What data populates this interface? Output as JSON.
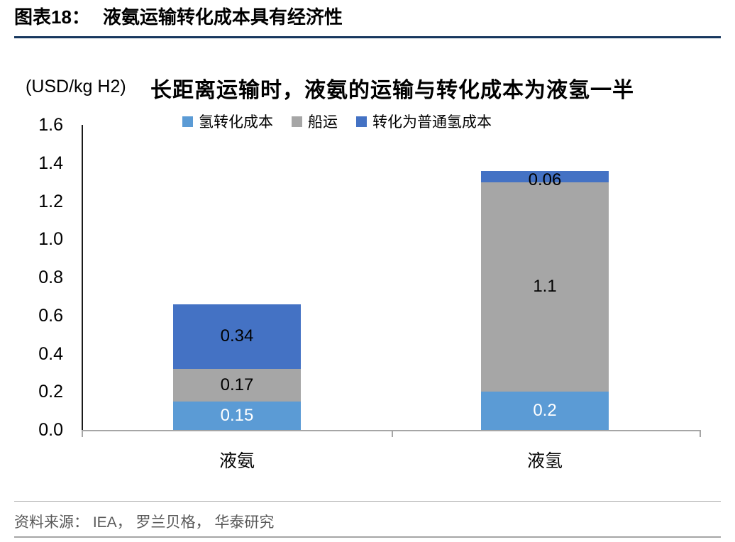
{
  "header": {
    "figure_label": "图表18：",
    "title": "液氨运输转化成本具有经济性"
  },
  "chart_data": {
    "type": "bar",
    "stacked": true,
    "title": "长距离运输时，液氨的运输与转化成本为液氢一半",
    "unit_label": "(USD/kg H2)",
    "categories": [
      "液氨",
      "液氢"
    ],
    "series": [
      {
        "name": "氢转化成本",
        "color": "#5B9BD5",
        "label_color": "#FFFFFF",
        "values": [
          0.15,
          0.2
        ]
      },
      {
        "name": "船运",
        "color": "#A6A6A6",
        "label_color": "#000000",
        "values": [
          0.17,
          1.1
        ]
      },
      {
        "name": "转化为普通氢成本",
        "color": "#4472C4",
        "label_color": "#000000",
        "values": [
          0.34,
          0.06
        ]
      }
    ],
    "totals": [
      0.66,
      1.36
    ],
    "ylim": [
      0,
      1.6
    ],
    "yticks": [
      "0.0",
      "0.2",
      "0.4",
      "0.6",
      "0.8",
      "1.0",
      "1.2",
      "1.4",
      "1.6"
    ],
    "grid": false,
    "legend_position": "top"
  },
  "footer": {
    "source": "资料来源： IEA， 罗兰贝格， 华泰研究"
  },
  "theme": {
    "header_rule_color": "#17375E",
    "x_axis_color": "#A6A6A6",
    "y_axis_color": "#1A1A1A"
  }
}
